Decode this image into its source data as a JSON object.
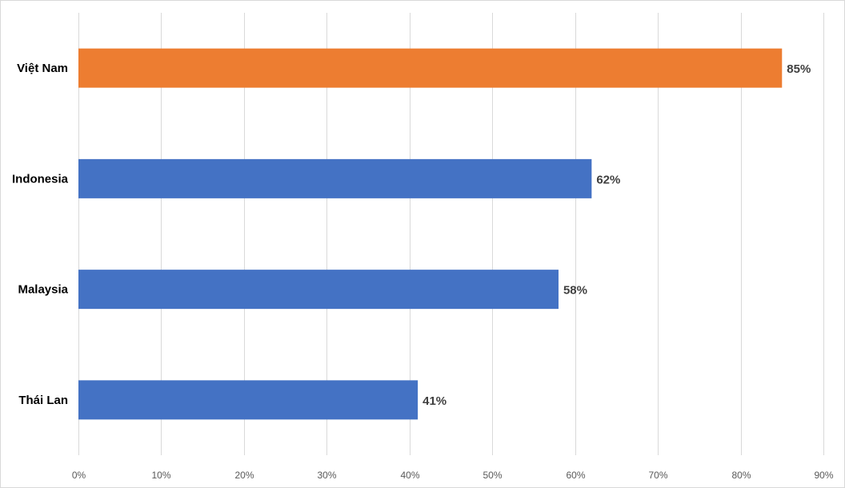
{
  "chart_data": {
    "type": "bar",
    "orientation": "horizontal",
    "categories": [
      "Việt Nam",
      "Indonesia",
      "Malaysia",
      "Thái Lan"
    ],
    "values": [
      85,
      62,
      58,
      41
    ],
    "data_labels": [
      "85%",
      "62%",
      "58%",
      "41%"
    ],
    "bar_colors": [
      "#ED7D31",
      "#4472C4",
      "#4472C4",
      "#4472C4"
    ],
    "x_ticks": [
      0,
      10,
      20,
      30,
      40,
      50,
      60,
      70,
      80,
      90
    ],
    "x_tick_labels": [
      "0%",
      "10%",
      "20%",
      "30%",
      "40%",
      "50%",
      "60%",
      "70%",
      "80%",
      "90%"
    ],
    "xlim": [
      0,
      90
    ],
    "grid": true,
    "legend": false,
    "title": "",
    "xlabel": "",
    "ylabel": ""
  }
}
